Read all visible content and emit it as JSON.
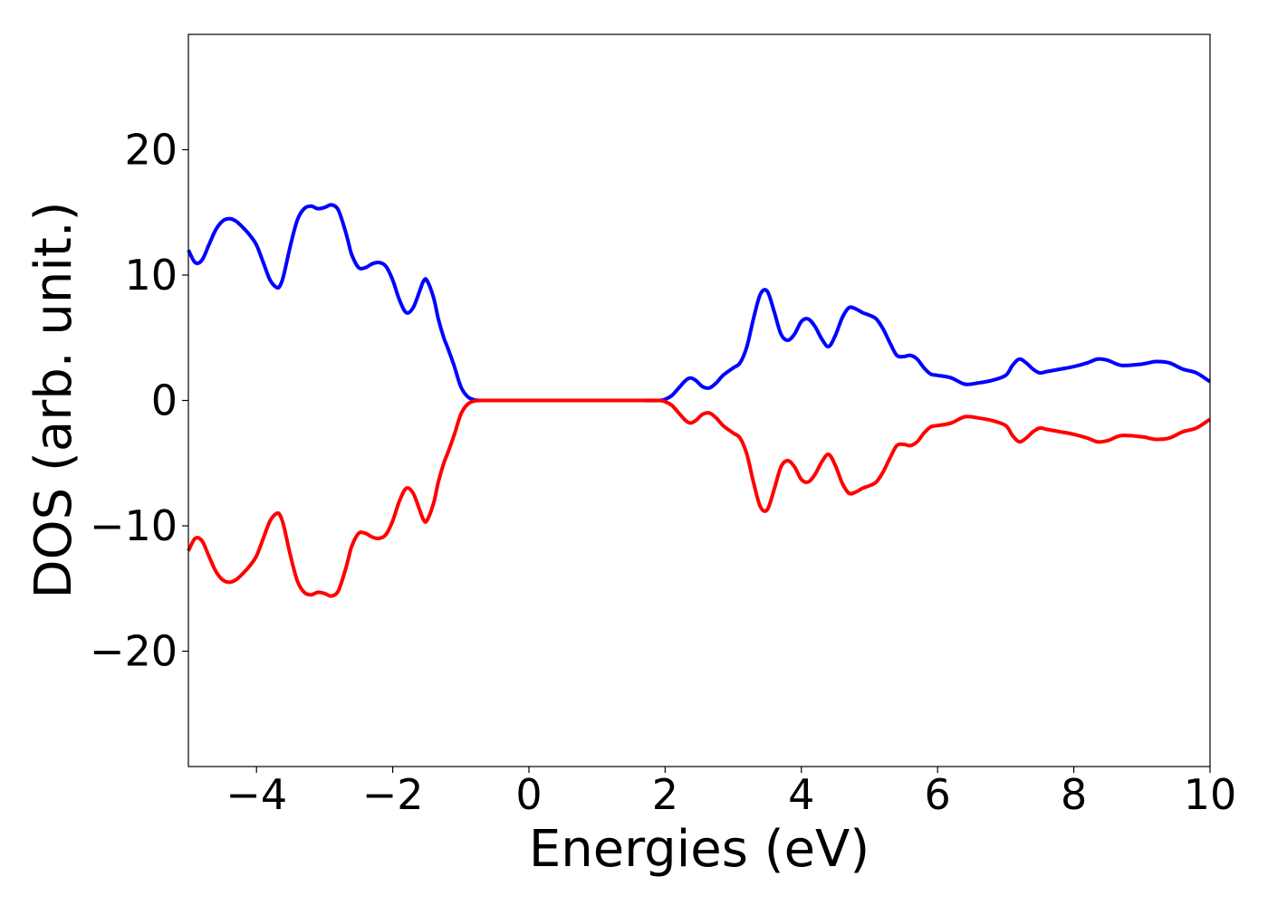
{
  "chart_data": {
    "type": "line",
    "title": "",
    "xlabel": "Energies (eV)",
    "ylabel": "DOS (arb. unit.)",
    "xlim": [
      -5,
      10
    ],
    "ylim": [
      -29.2,
      29.2
    ],
    "grid": false,
    "legend": "none",
    "x_ticks": [
      -4,
      -2,
      0,
      2,
      4,
      6,
      8,
      10
    ],
    "x_tick_labels": [
      "−4",
      "−2",
      "0",
      "2",
      "4",
      "6",
      "8",
      "10"
    ],
    "y_ticks": [
      20,
      10,
      0,
      -10,
      -20
    ],
    "y_tick_labels": [
      "20",
      "10",
      "0",
      "−10",
      "−20"
    ],
    "series": [
      {
        "color": "#0000ff",
        "x": [
          -5.0,
          -4.9,
          -4.8,
          -4.7,
          -4.6,
          -4.5,
          -4.4,
          -4.3,
          -4.2,
          -4.1,
          -4.0,
          -3.9,
          -3.8,
          -3.7,
          -3.65,
          -3.6,
          -3.5,
          -3.4,
          -3.3,
          -3.2,
          -3.1,
          -3.0,
          -2.9,
          -2.8,
          -2.7,
          -2.65,
          -2.6,
          -2.5,
          -2.4,
          -2.3,
          -2.2,
          -2.1,
          -2.0,
          -1.9,
          -1.8,
          -1.7,
          -1.6,
          -1.55,
          -1.5,
          -1.4,
          -1.33,
          -1.25,
          -1.2,
          -1.1,
          -1.0,
          -0.9,
          -0.8,
          -0.7,
          -0.6,
          -0.5,
          0.0,
          1.0,
          1.5,
          1.9,
          2.0,
          2.1,
          2.2,
          2.3,
          2.37,
          2.45,
          2.55,
          2.65,
          2.75,
          2.85,
          3.0,
          3.1,
          3.2,
          3.3,
          3.4,
          3.5,
          3.6,
          3.7,
          3.8,
          3.9,
          4.0,
          4.1,
          4.2,
          4.3,
          4.4,
          4.5,
          4.6,
          4.7,
          4.8,
          4.9,
          5.0,
          5.1,
          5.2,
          5.3,
          5.4,
          5.5,
          5.6,
          5.7,
          5.8,
          5.9,
          6.0,
          6.2,
          6.4,
          6.6,
          6.8,
          7.0,
          7.1,
          7.2,
          7.3,
          7.4,
          7.5,
          7.6,
          7.8,
          8.0,
          8.2,
          8.35,
          8.5,
          8.7,
          9.0,
          9.2,
          9.4,
          9.6,
          9.8,
          10.0
        ],
        "y": [
          12.0,
          11.0,
          11.2,
          12.4,
          13.6,
          14.3,
          14.5,
          14.3,
          13.8,
          13.2,
          12.4,
          11.0,
          9.6,
          9.0,
          9.2,
          10.0,
          12.4,
          14.4,
          15.3,
          15.5,
          15.3,
          15.4,
          15.6,
          15.2,
          13.6,
          12.6,
          11.6,
          10.6,
          10.6,
          10.9,
          11.0,
          10.7,
          9.6,
          8.0,
          7.0,
          7.4,
          8.8,
          9.5,
          9.6,
          8.2,
          6.5,
          5.0,
          4.3,
          2.8,
          1.1,
          0.3,
          0.05,
          0.0,
          0.0,
          0.0,
          0.0,
          0.0,
          0.0,
          0.0,
          0.1,
          0.4,
          1.0,
          1.6,
          1.8,
          1.6,
          1.1,
          1.0,
          1.4,
          2.0,
          2.6,
          3.0,
          4.3,
          6.6,
          8.5,
          8.7,
          7.1,
          5.3,
          4.8,
          5.3,
          6.3,
          6.5,
          5.9,
          4.9,
          4.3,
          5.2,
          6.6,
          7.4,
          7.3,
          7.0,
          6.8,
          6.5,
          5.7,
          4.6,
          3.6,
          3.5,
          3.6,
          3.3,
          2.6,
          2.1,
          2.0,
          1.8,
          1.3,
          1.4,
          1.6,
          2.0,
          2.8,
          3.3,
          3.0,
          2.5,
          2.2,
          2.3,
          2.5,
          2.7,
          3.0,
          3.3,
          3.2,
          2.8,
          2.9,
          3.1,
          3.0,
          2.5,
          2.2,
          1.5
        ]
      },
      {
        "color": "#ff0000",
        "x": [
          -5.0,
          -4.9,
          -4.8,
          -4.7,
          -4.6,
          -4.5,
          -4.4,
          -4.3,
          -4.2,
          -4.1,
          -4.0,
          -3.9,
          -3.8,
          -3.7,
          -3.65,
          -3.6,
          -3.5,
          -3.4,
          -3.3,
          -3.2,
          -3.1,
          -3.0,
          -2.9,
          -2.8,
          -2.7,
          -2.65,
          -2.6,
          -2.5,
          -2.4,
          -2.3,
          -2.2,
          -2.1,
          -2.0,
          -1.9,
          -1.8,
          -1.7,
          -1.6,
          -1.55,
          -1.5,
          -1.4,
          -1.33,
          -1.25,
          -1.2,
          -1.1,
          -1.0,
          -0.9,
          -0.8,
          -0.7,
          -0.6,
          -0.5,
          0.0,
          1.0,
          1.5,
          1.9,
          2.0,
          2.1,
          2.2,
          2.3,
          2.37,
          2.45,
          2.55,
          2.65,
          2.75,
          2.85,
          3.0,
          3.1,
          3.2,
          3.3,
          3.4,
          3.5,
          3.6,
          3.7,
          3.8,
          3.9,
          4.0,
          4.1,
          4.2,
          4.3,
          4.4,
          4.5,
          4.6,
          4.7,
          4.8,
          4.9,
          5.0,
          5.1,
          5.2,
          5.3,
          5.4,
          5.5,
          5.6,
          5.7,
          5.8,
          5.9,
          6.0,
          6.2,
          6.4,
          6.6,
          6.8,
          7.0,
          7.1,
          7.2,
          7.3,
          7.4,
          7.5,
          7.6,
          7.8,
          8.0,
          8.2,
          8.35,
          8.5,
          8.7,
          9.0,
          9.2,
          9.4,
          9.6,
          9.8,
          10.0
        ],
        "y": [
          -12.0,
          -11.0,
          -11.2,
          -12.4,
          -13.6,
          -14.3,
          -14.5,
          -14.3,
          -13.8,
          -13.2,
          -12.4,
          -11.0,
          -9.6,
          -9.0,
          -9.2,
          -10.0,
          -12.4,
          -14.4,
          -15.3,
          -15.5,
          -15.3,
          -15.4,
          -15.6,
          -15.2,
          -13.6,
          -12.6,
          -11.6,
          -10.6,
          -10.6,
          -10.9,
          -11.0,
          -10.7,
          -9.6,
          -8.0,
          -7.0,
          -7.4,
          -8.8,
          -9.5,
          -9.6,
          -8.2,
          -6.5,
          -5.0,
          -4.3,
          -2.8,
          -1.1,
          -0.3,
          -0.05,
          0.0,
          0.0,
          0.0,
          0.0,
          0.0,
          0.0,
          0.0,
          -0.1,
          -0.4,
          -1.0,
          -1.6,
          -1.8,
          -1.6,
          -1.1,
          -1.0,
          -1.4,
          -2.0,
          -2.6,
          -3.0,
          -4.3,
          -6.6,
          -8.5,
          -8.7,
          -7.1,
          -5.3,
          -4.8,
          -5.3,
          -6.3,
          -6.5,
          -5.9,
          -4.9,
          -4.3,
          -5.2,
          -6.6,
          -7.4,
          -7.3,
          -7.0,
          -6.8,
          -6.5,
          -5.7,
          -4.6,
          -3.6,
          -3.5,
          -3.6,
          -3.3,
          -2.6,
          -2.1,
          -2.0,
          -1.8,
          -1.3,
          -1.4,
          -1.6,
          -2.0,
          -2.8,
          -3.3,
          -3.0,
          -2.5,
          -2.2,
          -2.3,
          -2.5,
          -2.7,
          -3.0,
          -3.3,
          -3.2,
          -2.8,
          -2.9,
          -3.1,
          -3.0,
          -2.5,
          -2.2,
          -1.5
        ]
      }
    ]
  }
}
